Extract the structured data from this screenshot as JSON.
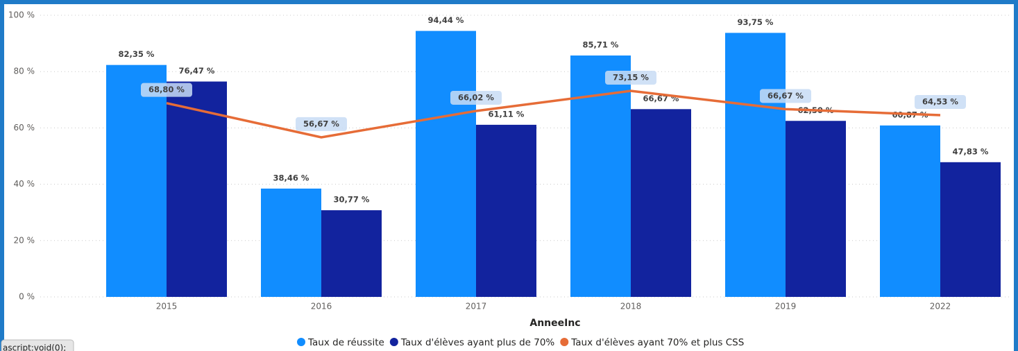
{
  "chart_data": {
    "type": "bar_line",
    "x_label": "AnneeInc",
    "categories": [
      "2015",
      "2016",
      "2017",
      "2018",
      "2019",
      "2022"
    ],
    "series": [
      {
        "name": "Taux de réussite",
        "color": "#118dff",
        "kind": "bar",
        "values": [
          82.35,
          38.46,
          94.44,
          85.71,
          93.75,
          60.87
        ],
        "value_labels": [
          "82,35 %",
          "38,46 %",
          "94,44 %",
          "85,71 %",
          "93,75 %",
          "60,87 %"
        ]
      },
      {
        "name": "Taux d'élèves ayant plus de 70%",
        "color": "#12239e",
        "kind": "bar",
        "values": [
          76.47,
          30.77,
          61.11,
          66.67,
          62.5,
          47.83
        ],
        "value_labels": [
          "76,47 %",
          "30,77 %",
          "61,11 %",
          "66,67 %",
          "62,50 %",
          "47,83 %"
        ]
      },
      {
        "name": "Taux d'élèves ayant 70% et plus CSS",
        "color": "#e66c37",
        "kind": "line",
        "values": [
          68.8,
          56.67,
          66.02,
          73.15,
          66.67,
          64.53
        ],
        "value_labels": [
          "68,80 %",
          "56,67 %",
          "66,02 %",
          "73,15 %",
          "66,67 %",
          "64,53 %"
        ]
      }
    ],
    "ylim": [
      0,
      100
    ],
    "yticks": [
      {
        "value": 0,
        "label": "0 %"
      },
      {
        "value": 20,
        "label": "20 %"
      },
      {
        "value": 40,
        "label": "40 %"
      },
      {
        "value": 60,
        "label": "60 %"
      },
      {
        "value": 80,
        "label": "80 %"
      },
      {
        "value": 100,
        "label": "100 %"
      }
    ],
    "grid": true,
    "legend": "bottom"
  },
  "status_text": "ascript:void(0);"
}
